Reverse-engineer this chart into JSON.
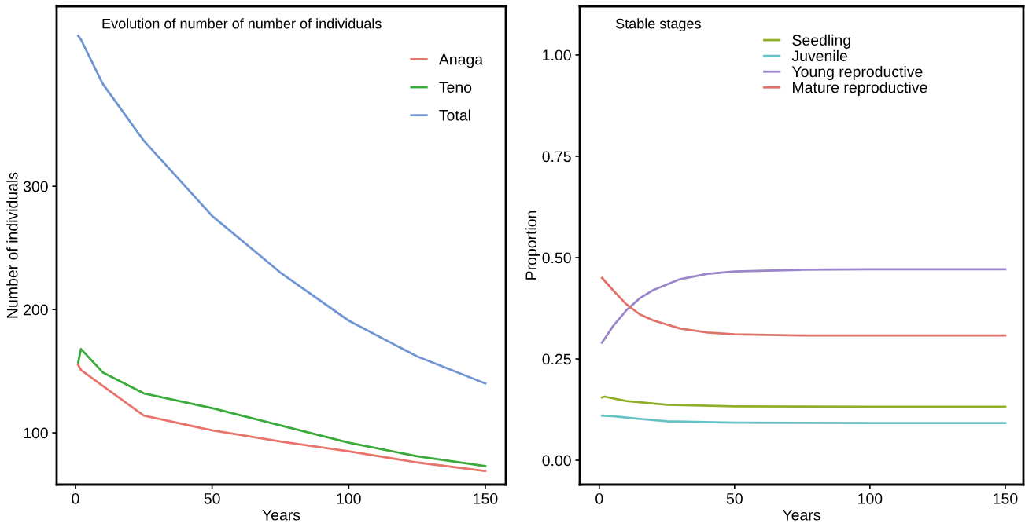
{
  "chart_data": [
    {
      "type": "line",
      "title": "Evolution of number of number of individuals",
      "xlabel": "Years",
      "ylabel": "Number of individuals",
      "x": [
        1,
        2,
        10,
        25,
        50,
        75,
        100,
        125,
        150
      ],
      "series": [
        {
          "name": "Anaga",
          "color": "#e8746b",
          "values": [
            155,
            151,
            138,
            114,
            102,
            93,
            85,
            76,
            69
          ]
        },
        {
          "name": "Teno",
          "color": "#3aaa3a",
          "values": [
            157,
            168,
            149,
            132,
            120,
            106,
            92,
            81,
            73
          ]
        },
        {
          "name": "Total",
          "color": "#6f95d3",
          "values": [
            422,
            419,
            383,
            337,
            276,
            230,
            191,
            162,
            140
          ]
        }
      ],
      "xlim": [
        -6.9,
        157.5
      ],
      "ylim": [
        58,
        446
      ],
      "xticks": [
        0,
        50,
        100,
        150
      ],
      "yticks": [
        100,
        200,
        300
      ],
      "grid": false,
      "legend": "top right",
      "marker": "none",
      "line_style": "solid"
    },
    {
      "type": "line",
      "title": "Stable stages",
      "xlabel": "Years",
      "ylabel": "Proportion",
      "series": [
        {
          "name": "Seedling",
          "color": "#8fae2a",
          "x": [
            1,
            2,
            10,
            25,
            50,
            100,
            150
          ],
          "values": [
            0.155,
            0.157,
            0.146,
            0.137,
            0.133,
            0.132,
            0.132
          ]
        },
        {
          "name": "Juvenile",
          "color": "#66c2c4",
          "x": [
            1,
            5,
            15,
            25,
            50,
            100,
            150
          ],
          "values": [
            0.11,
            0.109,
            0.102,
            0.096,
            0.093,
            0.092,
            0.092
          ]
        },
        {
          "name": "Young reproductive",
          "color": "#9b86c9",
          "x": [
            1,
            5,
            10,
            15,
            20,
            30,
            40,
            50,
            75,
            100,
            150
          ],
          "values": [
            0.29,
            0.33,
            0.37,
            0.4,
            0.42,
            0.447,
            0.46,
            0.466,
            0.47,
            0.471,
            0.471
          ]
        },
        {
          "name": "Mature reproductive",
          "color": "#e0726a",
          "x": [
            1,
            5,
            10,
            15,
            20,
            30,
            40,
            50,
            75,
            150
          ],
          "values": [
            0.45,
            0.42,
            0.385,
            0.36,
            0.345,
            0.325,
            0.315,
            0.311,
            0.308,
            0.308
          ]
        }
      ],
      "xlim": [
        -7.2,
        156.7
      ],
      "ylim": [
        -0.06,
        1.12
      ],
      "xticks": [
        0,
        50,
        100,
        150
      ],
      "yticks": [
        {
          "value": 0,
          "label": "0.00"
        },
        {
          "value": 0.25,
          "label": "0.25"
        },
        {
          "value": 0.5,
          "label": "0.50"
        },
        {
          "value": 0.75,
          "label": "0.75"
        },
        {
          "value": 1,
          "label": "1.00"
        }
      ],
      "grid": false,
      "legend": "top",
      "marker": "none",
      "line_style": "solid"
    }
  ]
}
